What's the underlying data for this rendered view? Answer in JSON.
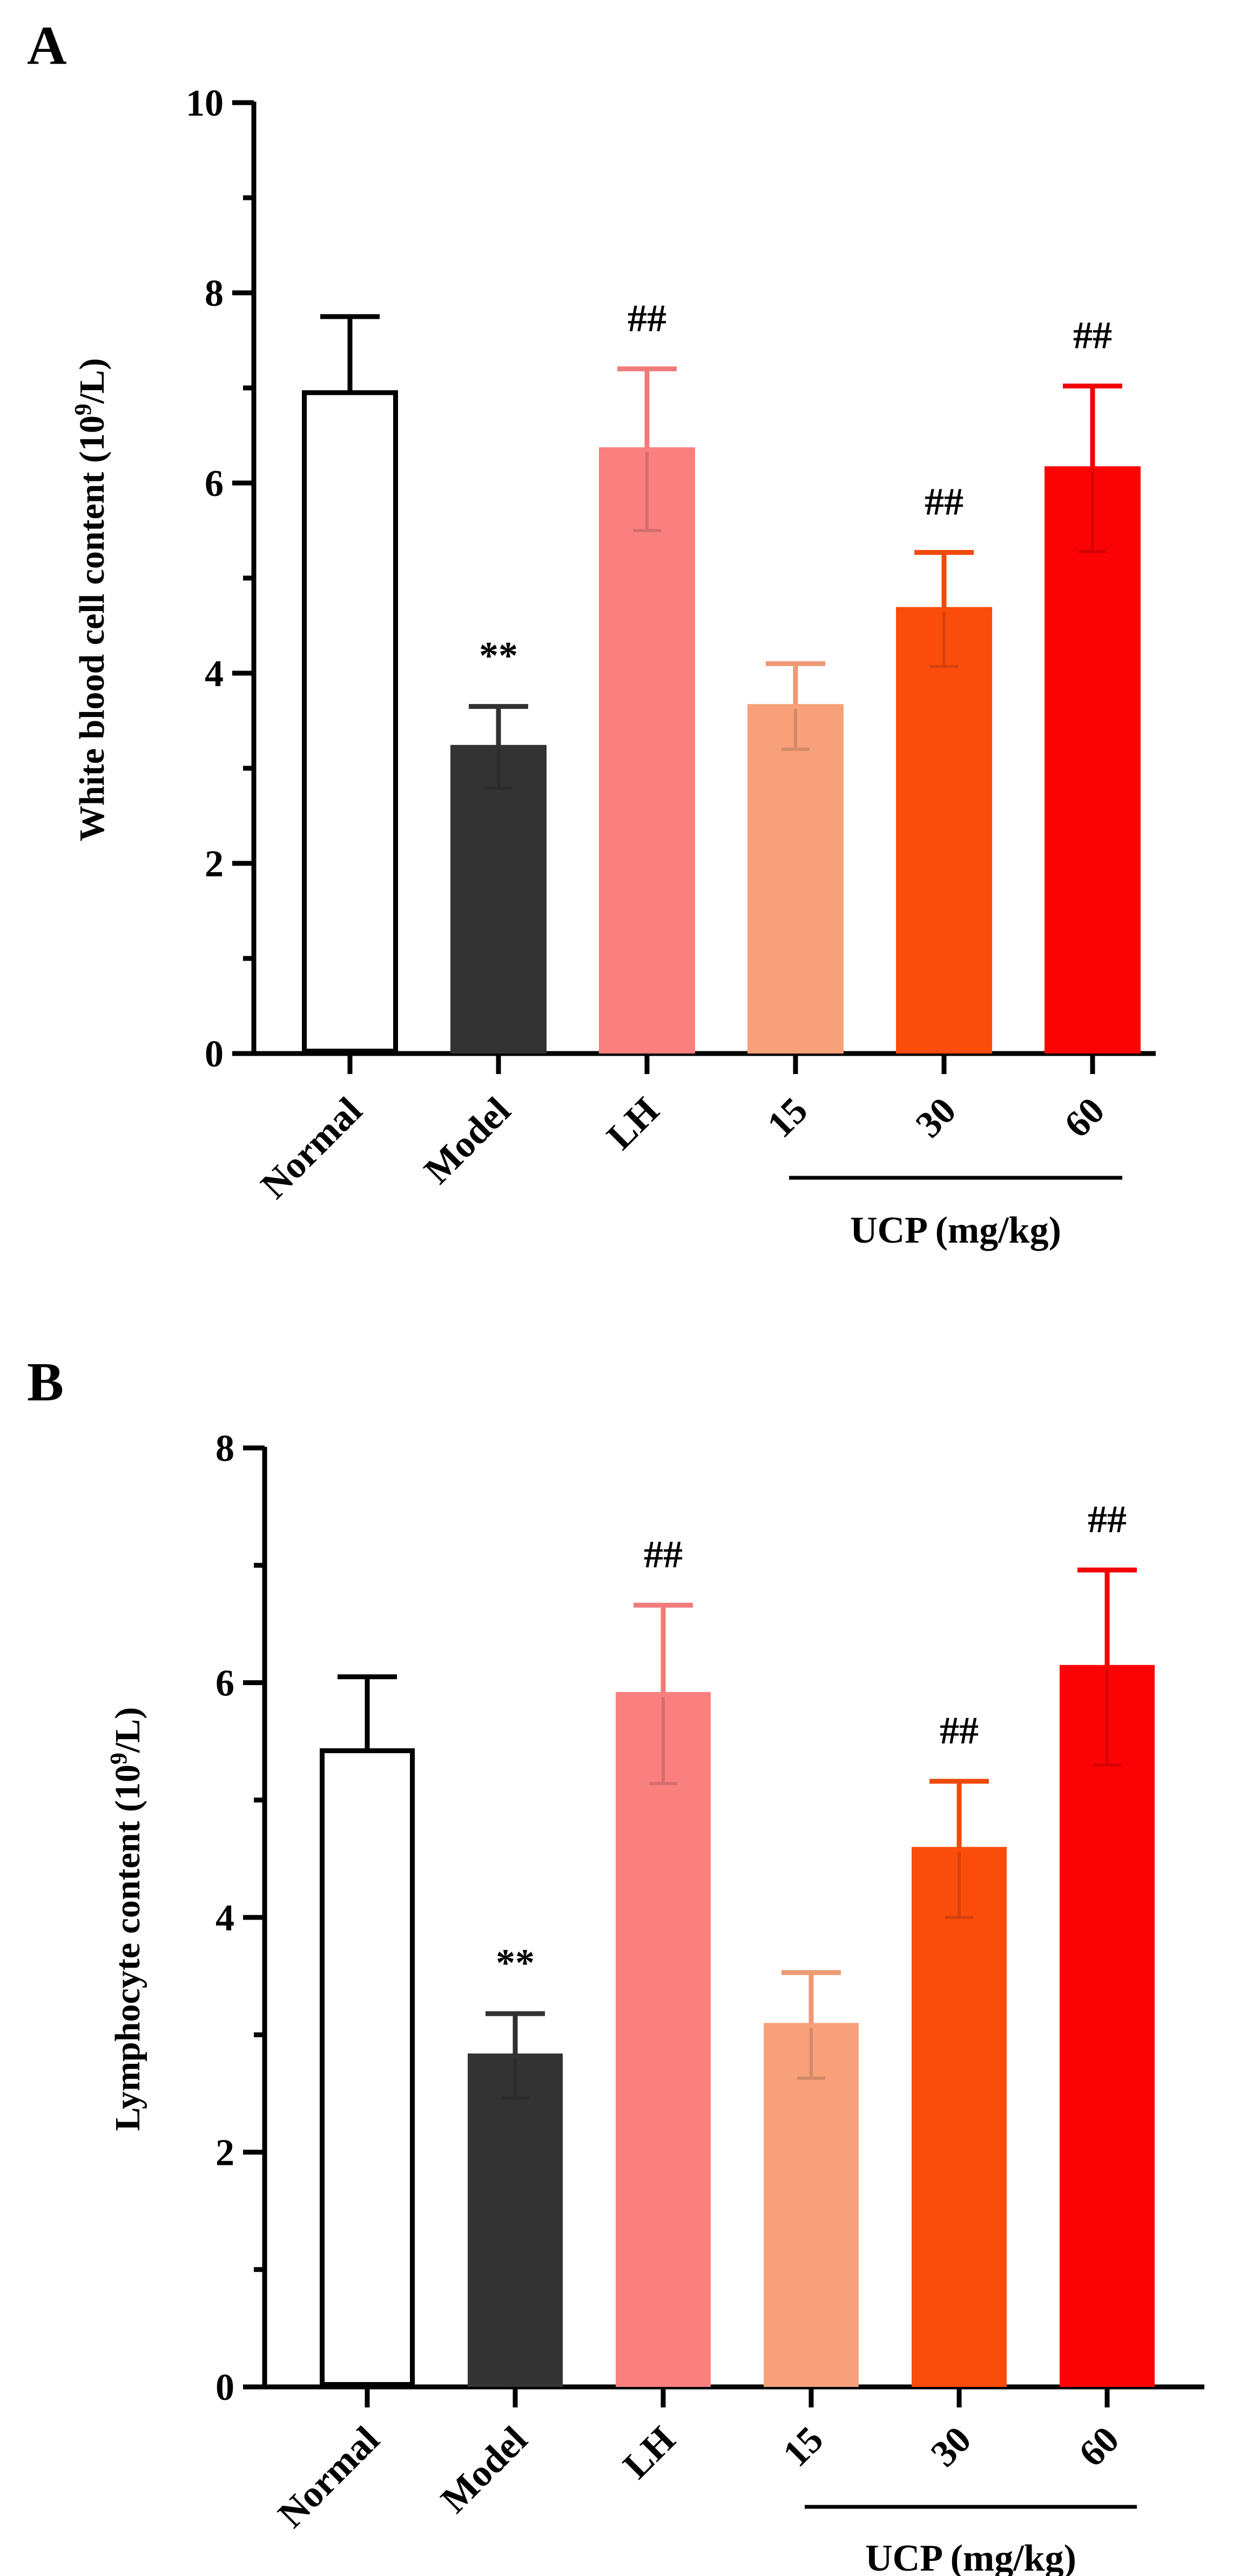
{
  "chart_data": [
    {
      "panel_label": "A",
      "type": "bar",
      "ylabel_main": "White blood cell content (10",
      "ylabel_sup": "9",
      "ylabel_tail": "/L)",
      "ylim": [
        0,
        10
      ],
      "major_ticks": [
        0,
        2,
        4,
        6,
        8,
        10
      ],
      "minor_tick_step": 1,
      "tick_labels": [
        "0",
        "2",
        "4",
        "6",
        "8",
        "10"
      ],
      "categories": [
        "Normal",
        "Model",
        "LH",
        "15",
        "30",
        "60"
      ],
      "values": [
        6.95,
        3.22,
        6.35,
        3.65,
        4.67,
        6.15
      ],
      "error": [
        0.8,
        0.43,
        0.85,
        0.45,
        0.6,
        0.87
      ],
      "colors": [
        "#ffffff",
        "#333333",
        "#fa8080",
        "#f7a07a",
        "#fa4d0b",
        "#fb0304"
      ],
      "annotations": [
        "",
        "**",
        "##",
        "",
        "##",
        "##"
      ],
      "group_label": "UCP (mg/kg)",
      "group_span": [
        3,
        5
      ]
    },
    {
      "panel_label": "B",
      "type": "bar",
      "ylabel_main": "Lymphocyte content (10",
      "ylabel_sup": "9",
      "ylabel_tail": "/L)",
      "ylim": [
        0,
        8
      ],
      "major_ticks": [
        0,
        2,
        4,
        6,
        8
      ],
      "minor_tick_step": 1,
      "tick_labels": [
        "0",
        "2",
        "4",
        "6",
        "8"
      ],
      "categories": [
        "Normal",
        "Model",
        "LH",
        "15",
        "30",
        "60"
      ],
      "values": [
        5.42,
        2.82,
        5.9,
        3.08,
        4.58,
        6.13
      ],
      "error": [
        0.63,
        0.36,
        0.76,
        0.45,
        0.58,
        0.83
      ],
      "colors": [
        "#ffffff",
        "#333333",
        "#fa8080",
        "#f7a07a",
        "#fa4d0b",
        "#fb0304"
      ],
      "annotations": [
        "",
        "**",
        "##",
        "",
        "##",
        "##"
      ],
      "group_label": "UCP (mg/kg)",
      "group_span": [
        3,
        5
      ]
    }
  ]
}
